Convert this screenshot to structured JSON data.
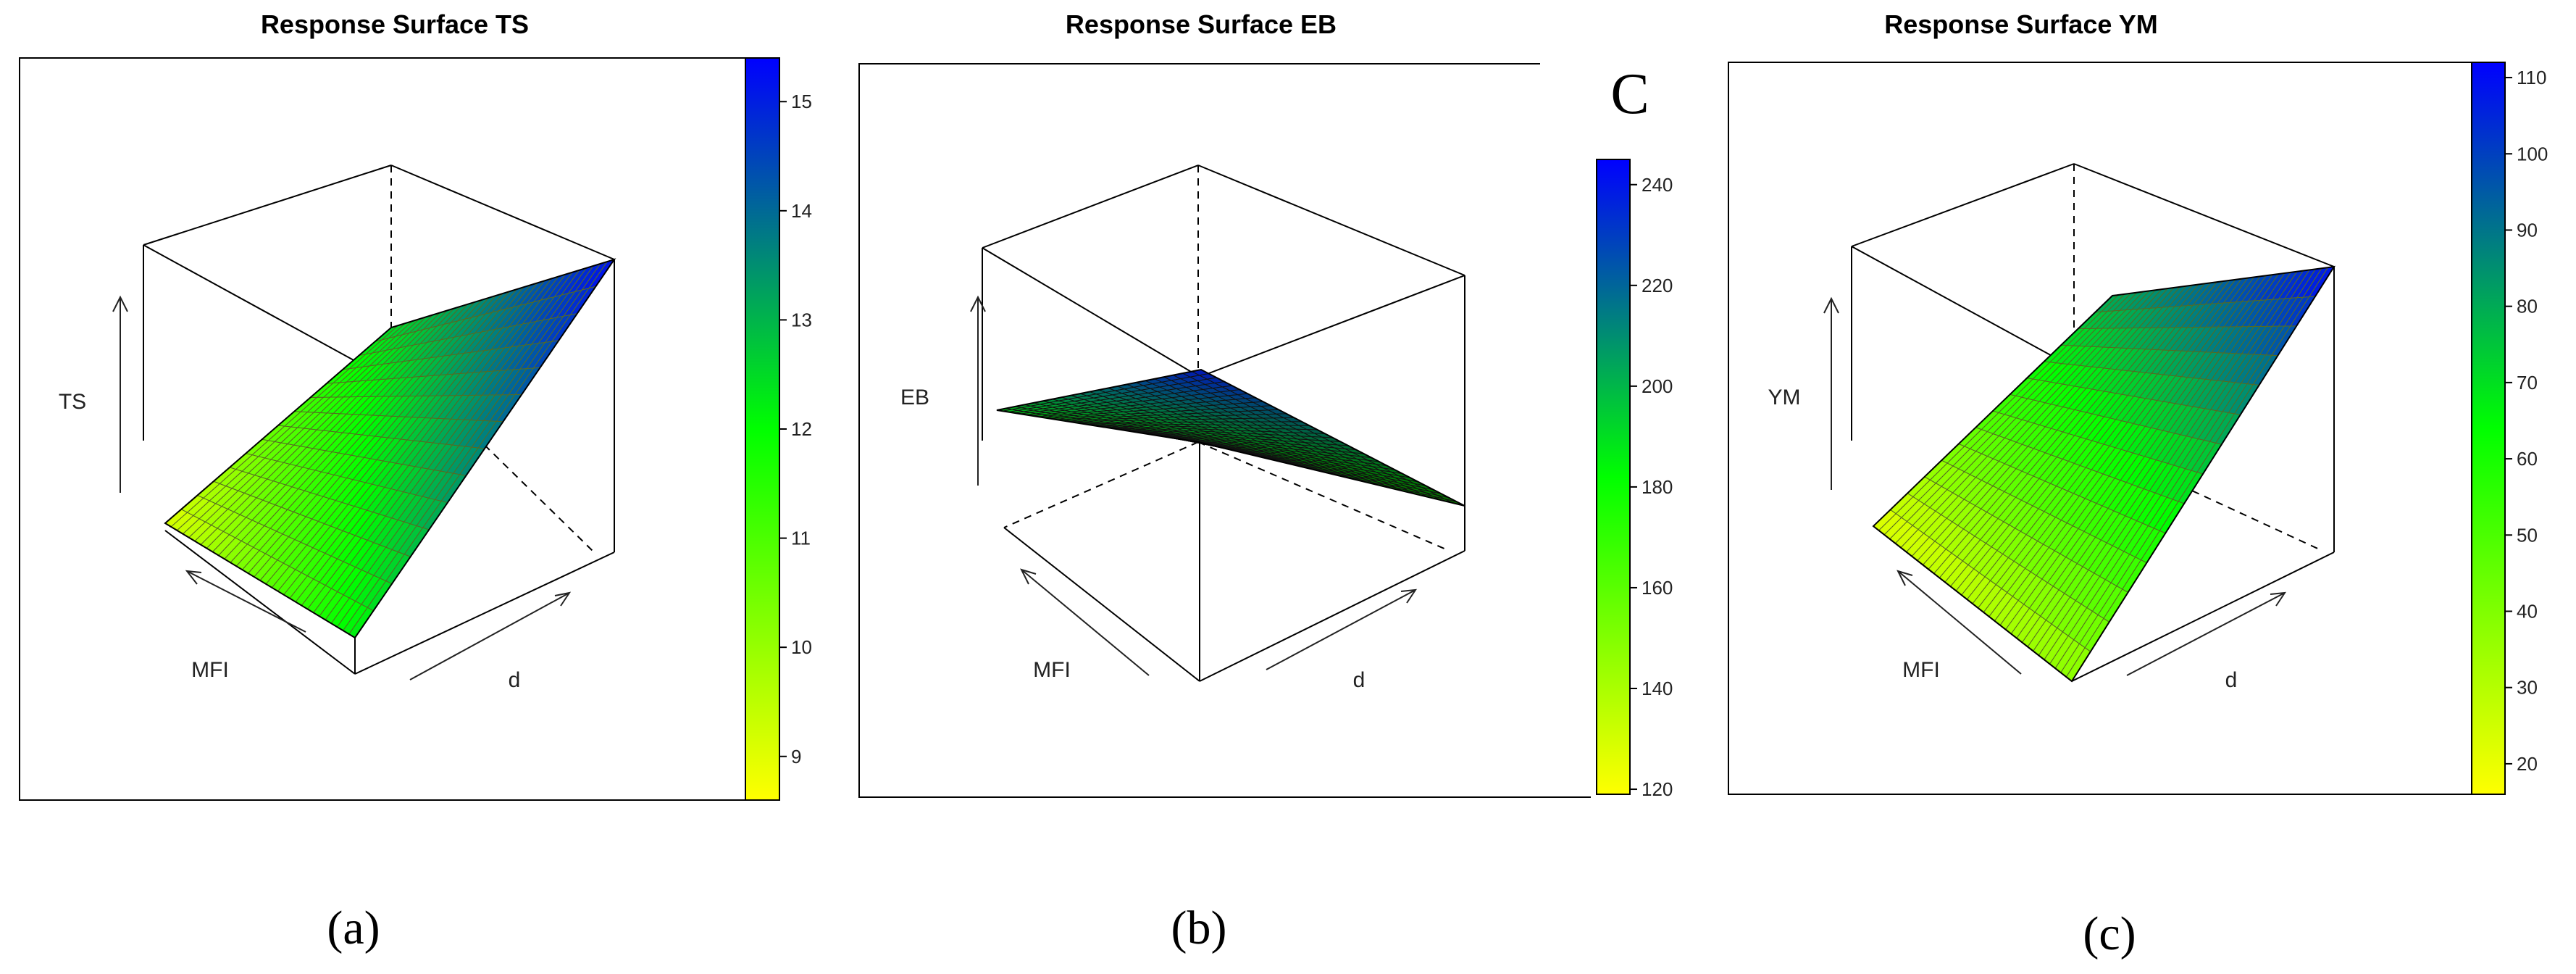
{
  "panels": [
    {
      "title": "Response Surface TS",
      "z_label": "TS",
      "x_label": "MFI",
      "y_label": "d",
      "caption": "(a)",
      "colorbar_ticks": [
        "9",
        "10",
        "11",
        "12",
        "13",
        "14",
        "15"
      ]
    },
    {
      "title": "Response Surface EB",
      "z_label": "EB",
      "x_label": "MFI",
      "y_label": "d",
      "caption": "(b)",
      "overlay_label": "C",
      "colorbar_ticks": [
        "120",
        "140",
        "160",
        "180",
        "200",
        "220",
        "240"
      ]
    },
    {
      "title": "Response Surface YM",
      "z_label": "YM",
      "x_label": "MFI",
      "y_label": "d",
      "caption": "(c)",
      "colorbar_ticks": [
        "20",
        "30",
        "40",
        "50",
        "60",
        "70",
        "80",
        "90",
        "100",
        "110"
      ]
    }
  ],
  "chart_data": [
    {
      "type": "surface",
      "title": "Response Surface TS",
      "x_variable": "MFI",
      "y_variable": "d",
      "z_variable": "TS",
      "color_range": [
        8.6,
        15.4
      ],
      "colorbar_ticks": [
        9,
        10,
        11,
        12,
        13,
        14,
        15
      ],
      "colors": {
        "low": "#ffff00",
        "mid": "#00ff00",
        "high": "#0000ff"
      }
    },
    {
      "type": "surface",
      "title": "Response Surface EB",
      "x_variable": "MFI",
      "y_variable": "d",
      "z_variable": "EB",
      "color_range": [
        119,
        245
      ],
      "colorbar_ticks": [
        120,
        140,
        160,
        180,
        200,
        220,
        240
      ],
      "colors": {
        "low": "#ffff00",
        "mid": "#00ff00",
        "high": "#0000ff"
      }
    },
    {
      "type": "surface",
      "title": "Response Surface YM",
      "x_variable": "MFI",
      "y_variable": "d",
      "z_variable": "YM",
      "color_range": [
        16,
        112
      ],
      "colorbar_ticks": [
        20,
        30,
        40,
        50,
        60,
        70,
        80,
        90,
        100,
        110
      ],
      "colors": {
        "low": "#ffff00",
        "mid": "#00ff00",
        "high": "#0000ff"
      }
    }
  ]
}
